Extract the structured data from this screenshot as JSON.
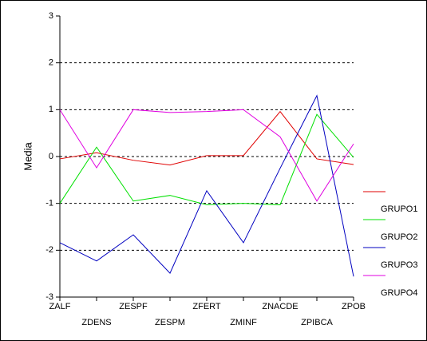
{
  "chart_data": {
    "type": "line",
    "y_label": "Media",
    "categories": [
      "ZALF",
      "ZDENS",
      "ZESPF",
      "ZESPM",
      "ZFERT",
      "ZMINF",
      "ZNACDE",
      "ZPIBCA",
      "ZPOB"
    ],
    "ylim": [
      -3,
      3
    ],
    "yticks": [
      3,
      2,
      1,
      0,
      -1,
      -2,
      -3
    ],
    "grid": true,
    "series": [
      {
        "name": "GRUPO1",
        "color": "#e00000",
        "values": [
          -0.05,
          0.08,
          -0.08,
          -0.18,
          0.02,
          0.02,
          0.96,
          -0.05,
          -0.17
        ]
      },
      {
        "name": "GRUPO2",
        "color": "#00e000",
        "values": [
          -1.0,
          0.2,
          -0.95,
          -0.83,
          -1.03,
          -1.0,
          -1.03,
          0.9,
          -0.02
        ]
      },
      {
        "name": "GRUPO3",
        "color": "#0000c0",
        "values": [
          -1.84,
          -2.23,
          -1.67,
          -2.49,
          -0.73,
          -1.84,
          -0.25,
          1.3,
          -2.56
        ]
      },
      {
        "name": "GRUPO4",
        "color": "#e000e0",
        "values": [
          1.0,
          -0.24,
          1.0,
          0.94,
          0.96,
          1.0,
          0.42,
          -0.95,
          0.27
        ]
      }
    ]
  }
}
